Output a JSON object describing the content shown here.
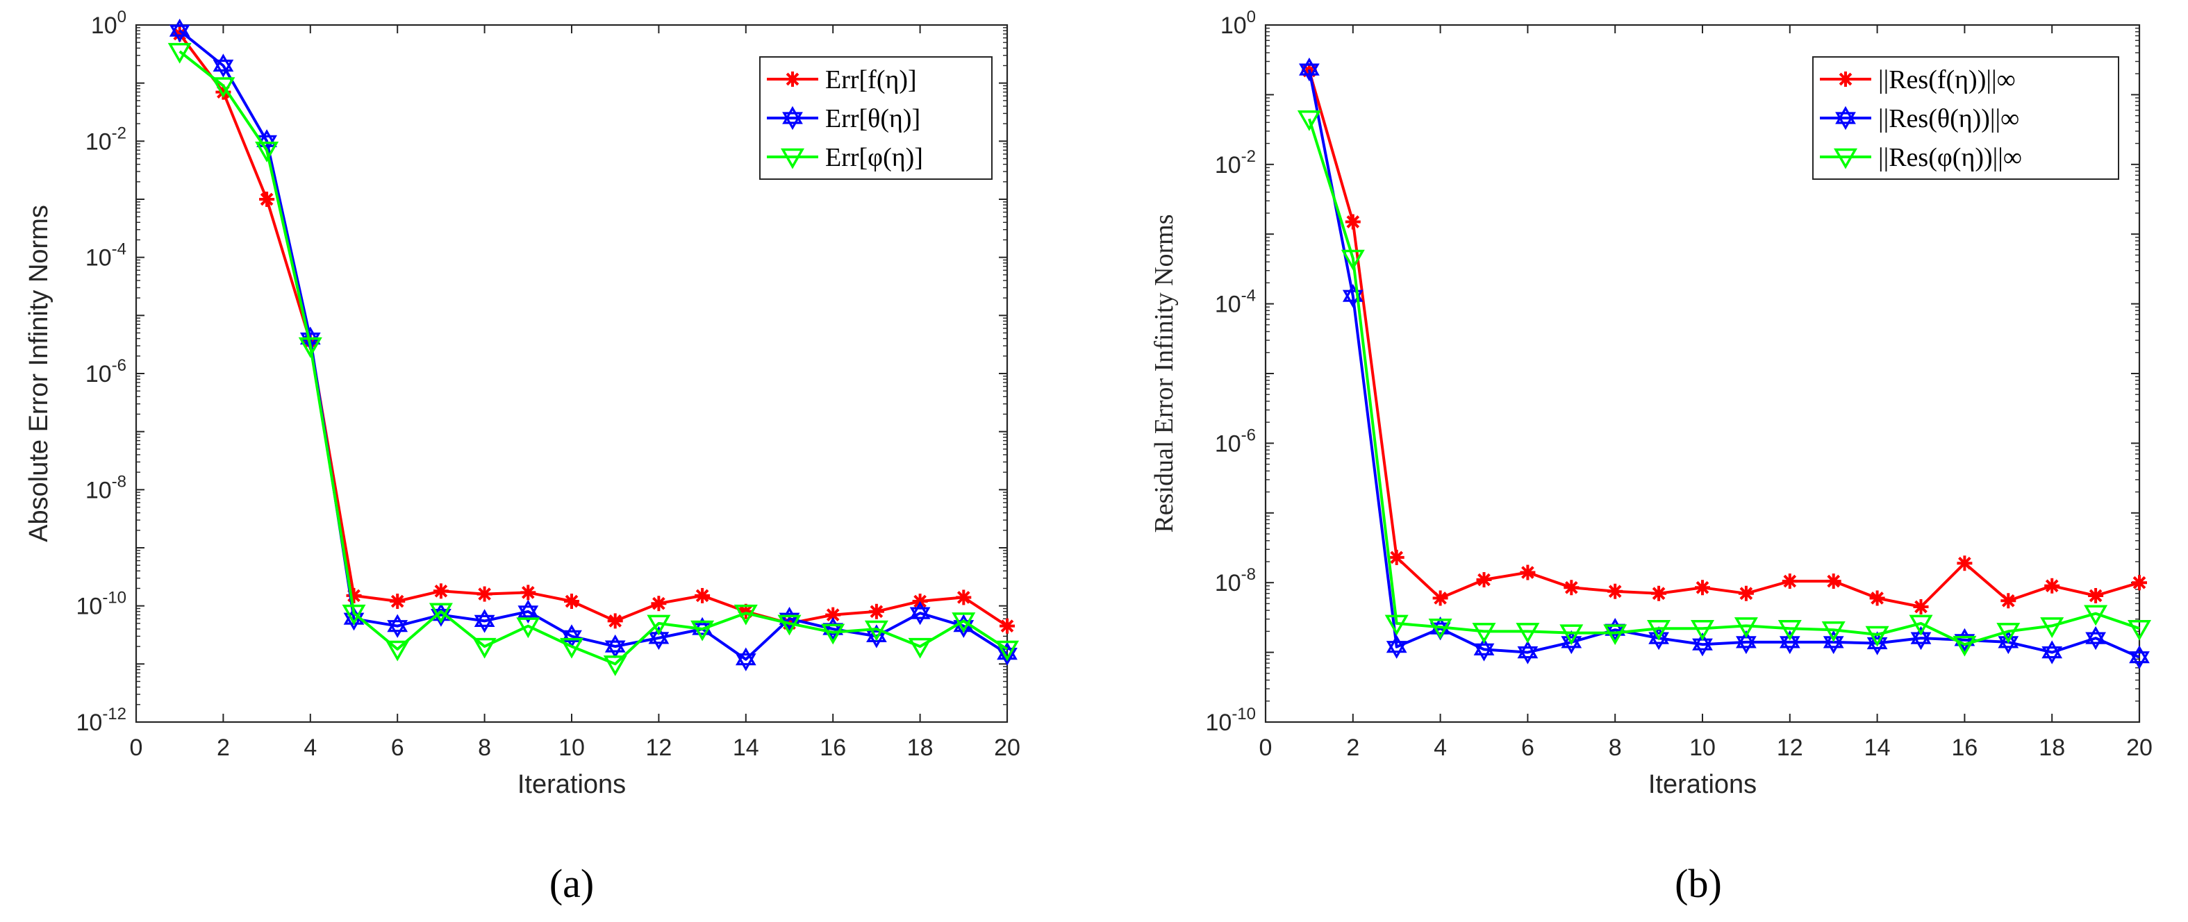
{
  "chart_data": [
    {
      "type": "line",
      "panel_label": "(a)",
      "xlabel": "Iterations",
      "ylabel": "Absolute Error Infinity Norms",
      "xlim": [
        0,
        20
      ],
      "ylim_log10": [
        -12,
        0
      ],
      "yscale": "log",
      "xticks": [
        0,
        2,
        4,
        6,
        8,
        10,
        12,
        14,
        16,
        18,
        20
      ],
      "yticks": [
        "10^0",
        "10^-2",
        "10^-4",
        "10^-6",
        "10^-8",
        "10^-10",
        "10^-12"
      ],
      "legend_position": "top-right",
      "x": [
        1,
        2,
        3,
        4,
        5,
        6,
        7,
        8,
        9,
        10,
        11,
        12,
        13,
        14,
        15,
        16,
        17,
        18,
        19,
        20
      ],
      "series": [
        {
          "name": "Err[f(η)]",
          "marker": "asterisk",
          "color": "#ff0000",
          "values": [
            0.7,
            0.07,
            0.001,
            3.5e-06,
            1.5e-10,
            1.2e-10,
            1.8e-10,
            1.6e-10,
            1.7e-10,
            1.2e-10,
            5.5e-11,
            1.1e-10,
            1.5e-10,
            8e-11,
            5e-11,
            7e-11,
            8e-11,
            1.2e-10,
            1.4e-10,
            4.5e-11
          ]
        },
        {
          "name": "Err[θ(η)]",
          "marker": "hexagram",
          "color": "#0000ff",
          "values": [
            0.8,
            0.2,
            0.01,
            4e-06,
            6e-11,
            4.5e-11,
            7e-11,
            5.5e-11,
            8e-11,
            3e-11,
            2e-11,
            2.8e-11,
            4e-11,
            1.2e-11,
            6e-11,
            4e-11,
            3e-11,
            7.5e-11,
            4.5e-11,
            1.5e-11
          ]
        },
        {
          "name": "Err[φ(η)]",
          "marker": "triangle-down",
          "color": "#00ff00",
          "values": [
            0.35,
            0.09,
            0.007,
            3e-06,
            7.5e-11,
            1.8e-11,
            8e-11,
            2e-11,
            4.5e-11,
            2e-11,
            1e-11,
            5e-11,
            4e-11,
            7.5e-11,
            5e-11,
            3.5e-11,
            4e-11,
            2e-11,
            5.5e-11,
            1.8e-11
          ]
        }
      ]
    },
    {
      "type": "line",
      "panel_label": "(b)",
      "xlabel": "Iterations",
      "ylabel": "Residual Error Infinity Norms",
      "xlim": [
        0,
        20
      ],
      "ylim_log10": [
        -10,
        0
      ],
      "yscale": "log",
      "xticks": [
        0,
        2,
        4,
        6,
        8,
        10,
        12,
        14,
        16,
        18,
        20
      ],
      "yticks": [
        "10^0",
        "10^-2",
        "10^-4",
        "10^-6",
        "10^-8",
        "10^-10"
      ],
      "legend_position": "top-right",
      "x": [
        1,
        2,
        3,
        4,
        5,
        6,
        7,
        8,
        9,
        10,
        11,
        12,
        13,
        14,
        15,
        16,
        17,
        18,
        19,
        20
      ],
      "series": [
        {
          "name": "||Res(f(η))||∞",
          "marker": "asterisk",
          "color": "#ff0000",
          "values": [
            0.22,
            0.0015,
            2.3e-08,
            6e-09,
            1.1e-08,
            1.4e-08,
            8.5e-09,
            7.5e-09,
            7e-09,
            8.5e-09,
            7e-09,
            1.05e-08,
            1.05e-08,
            6e-09,
            4.5e-09,
            1.9e-08,
            5.5e-09,
            9e-09,
            6.5e-09,
            1e-08
          ]
        },
        {
          "name": "||Res(θ(η))||∞",
          "marker": "hexagram",
          "color": "#0000ff",
          "values": [
            0.23,
            0.00013,
            1.2e-09,
            2.2e-09,
            1.1e-09,
            1e-09,
            1.4e-09,
            2.1e-09,
            1.6e-09,
            1.3e-09,
            1.4e-09,
            1.4e-09,
            1.4e-09,
            1.35e-09,
            1.6e-09,
            1.5e-09,
            1.4e-09,
            1e-09,
            1.6e-09,
            8.5e-10
          ]
        },
        {
          "name": "||Res(φ(η))||∞",
          "marker": "triangle-down",
          "color": "#00ff00",
          "values": [
            0.045,
            0.00045,
            2.6e-09,
            2.3e-09,
            2e-09,
            2e-09,
            1.9e-09,
            1.9e-09,
            2.2e-09,
            2.2e-09,
            2.4e-09,
            2.2e-09,
            2.1e-09,
            1.8e-09,
            2.6e-09,
            1.3e-09,
            2e-09,
            2.4e-09,
            3.6e-09,
            2.2e-09
          ]
        }
      ]
    }
  ]
}
